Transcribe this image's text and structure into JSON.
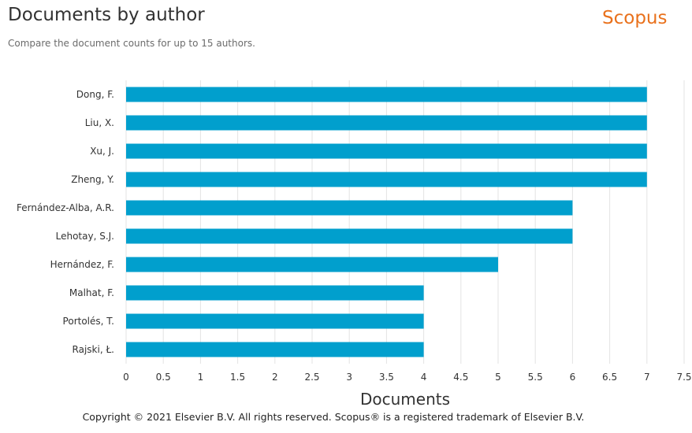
{
  "header": {
    "title": "Documents by author",
    "subtitle": "Compare the document counts for up to 15 authors.",
    "brand": "Scopus"
  },
  "footer": {
    "copyright": "Copyright © 2021 Elsevier B.V. All rights reserved. Scopus® is a registered trademark of Elsevier B.V."
  },
  "colors": {
    "bar": "#019fcd",
    "grid": "#e3e3e3",
    "brand": "#e9711c"
  },
  "chart_data": {
    "type": "bar",
    "orientation": "horizontal",
    "categories": [
      "Dong, F.",
      "Liu, X.",
      "Xu, J.",
      "Zheng, Y.",
      "Fernández-Alba, A.R.",
      "Lehotay, S.J.",
      "Hernández, F.",
      "Malhat, F.",
      "Portolés, T.",
      "Rajski, Ł."
    ],
    "values": [
      7,
      7,
      7,
      7,
      6,
      6,
      5,
      4,
      4,
      4
    ],
    "xlabel": "Documents",
    "ylabel": "",
    "xlim": [
      0,
      7.5
    ],
    "xticks": [
      "0",
      "0.5",
      "1",
      "1.5",
      "2",
      "2.5",
      "3",
      "3.5",
      "4",
      "4.5",
      "5",
      "5.5",
      "6",
      "6.5",
      "7",
      "7.5"
    ],
    "grid": "vertical"
  }
}
